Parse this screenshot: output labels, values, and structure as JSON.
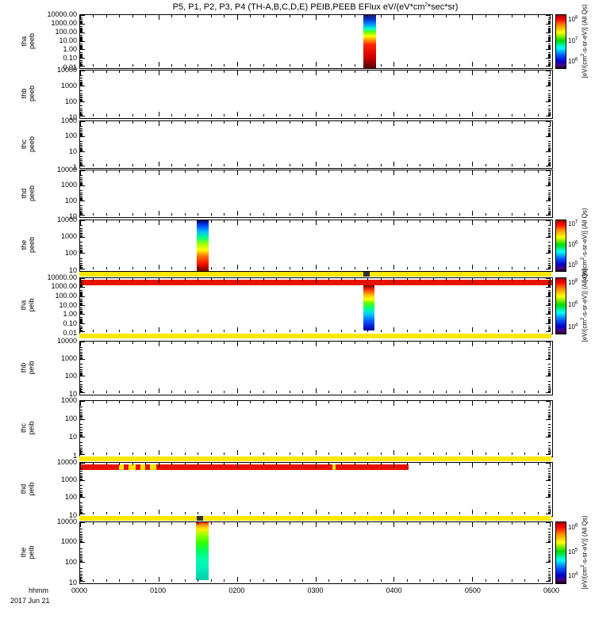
{
  "title": "P5, P1, P2, P3, P4 (TH-A,B,C,D,E) PEIB,PEEB EFlux eV/(eV*cm^2*sec*sr)",
  "chart_data": {
    "type": "heatmap",
    "title": "P5, P1, P2, P3, P4 (TH-A,B,C,D,E) PEIB,PEEB EFlux eV/(eV*cm^2*sec*sr)",
    "xlabel": "hhmm",
    "date": "2017 Jun 21",
    "x_ticks": [
      "0000",
      "0100",
      "0200",
      "0300",
      "0400",
      "0500",
      "0600"
    ],
    "x_range_hours": [
      0,
      6
    ],
    "grid": false,
    "colorbar_label": "[eV/(cm^2-s-sr-eV)] (All Qs)",
    "colorbar_gradient": [
      [
        0,
        "#9b0000"
      ],
      [
        0.08,
        "#ff0000"
      ],
      [
        0.2,
        "#ff9100"
      ],
      [
        0.33,
        "#ffff00"
      ],
      [
        0.48,
        "#00dd00"
      ],
      [
        0.62,
        "#00ffff"
      ],
      [
        0.76,
        "#0055ff"
      ],
      [
        0.87,
        "#0000cc"
      ],
      [
        0.95,
        "#4b0082"
      ],
      [
        1,
        "#140022"
      ]
    ],
    "panels": [
      {
        "name": "tha peeb",
        "label_lines": [
          "tha",
          "peeb"
        ],
        "yscale": "log",
        "yticks": [
          "10000.00",
          "1000.00",
          "100.00",
          "10.00",
          "1.00",
          "0.10",
          "0.01"
        ],
        "colorbar_ticks": [
          "10^8",
          "10^7",
          "10^6"
        ],
        "features": [
          {
            "type": "burst",
            "t0": "0336",
            "t1": "0345",
            "x0": 0.6,
            "x1": 0.627,
            "y0": 0,
            "y1": 1,
            "stops": [
              [
                0,
                "#202066"
              ],
              [
                0.08,
                "#0033cc"
              ],
              [
                0.18,
                "#0099ff"
              ],
              [
                0.26,
                "#00ffcc"
              ],
              [
                0.32,
                "#66ff00"
              ],
              [
                0.4,
                "#ffff00"
              ],
              [
                0.48,
                "#ff8800"
              ],
              [
                0.56,
                "#ff2200"
              ],
              [
                0.8,
                "#cc0000"
              ],
              [
                1,
                "#5a0000"
              ]
            ]
          }
        ]
      },
      {
        "name": "thb peeb",
        "label_lines": [
          "thb",
          "peeb"
        ],
        "yscale": "log",
        "yticks": [
          "10000",
          "1000",
          "100",
          "10"
        ],
        "features": []
      },
      {
        "name": "thc peeb",
        "label_lines": [
          "thc",
          "peeb"
        ],
        "yscale": "log",
        "yticks": [
          "1000",
          "100",
          "10",
          "1"
        ],
        "features": []
      },
      {
        "name": "thd peeb",
        "label_lines": [
          "thd",
          "peeb"
        ],
        "yscale": "log",
        "yticks": [
          "10000",
          "1000",
          "100",
          "10"
        ],
        "features": []
      },
      {
        "name": "the peeb",
        "label_lines": [
          "the",
          "peeb"
        ],
        "yscale": "log",
        "yticks": [
          "10000",
          "1000",
          "100",
          "10"
        ],
        "colorbar_ticks": [
          "10^7",
          "10^6",
          "10^5"
        ],
        "features": [
          {
            "type": "burst",
            "t0": "0129",
            "t1": "0138",
            "x0": 0.247,
            "x1": 0.272,
            "y0": 0,
            "y1": 1,
            "stops": [
              [
                0,
                "#000066"
              ],
              [
                0.1,
                "#0044ff"
              ],
              [
                0.22,
                "#00bbff"
              ],
              [
                0.34,
                "#00ff88"
              ],
              [
                0.46,
                "#99ff00"
              ],
              [
                0.58,
                "#ffff00"
              ],
              [
                0.7,
                "#ff7700"
              ],
              [
                0.85,
                "#ff1100"
              ],
              [
                1,
                "#770000"
              ]
            ]
          }
        ]
      },
      {
        "name": "tha peib",
        "label_lines": [
          "tha",
          "peib"
        ],
        "yscale": "log",
        "yticks": [
          "10000.00",
          "1000.00",
          "100.00",
          "10.00",
          "1.00",
          "0.10",
          "0.01"
        ],
        "colorbar_ticks": [
          "10^8",
          "10^6",
          "10^4"
        ],
        "features": [
          {
            "type": "edge_band",
            "position": "above",
            "color": "#ffe800"
          },
          {
            "type": "edge_band",
            "position": "below",
            "color": "#ffe800"
          },
          {
            "type": "edge_mark",
            "position": "above",
            "x0": 0.602,
            "x1": 0.615,
            "color": "#333333"
          },
          {
            "type": "hband",
            "x0": 0,
            "x1": 1,
            "y0": 0.03,
            "y1": 0.13,
            "color": "#e81100"
          },
          {
            "type": "burst",
            "t0": "0336",
            "t1": "0344",
            "x0": 0.6,
            "x1": 0.623,
            "y0": 0.13,
            "y1": 0.95,
            "stops": [
              [
                0,
                "#7a0000"
              ],
              [
                0.1,
                "#ff3300"
              ],
              [
                0.2,
                "#ffaa00"
              ],
              [
                0.3,
                "#ffff00"
              ],
              [
                0.4,
                "#55ff00"
              ],
              [
                0.52,
                "#00ff99"
              ],
              [
                0.64,
                "#00ccff"
              ],
              [
                0.78,
                "#0066ff"
              ],
              [
                0.9,
                "#0022dd"
              ],
              [
                1,
                "#000099"
              ]
            ]
          }
        ]
      },
      {
        "name": "thb peib",
        "label_lines": [
          "thb",
          "peib"
        ],
        "yscale": "log",
        "yticks": [
          "10000",
          "1000",
          "100",
          "10"
        ],
        "features": []
      },
      {
        "name": "thc peib",
        "label_lines": [
          "thc",
          "peib"
        ],
        "yscale": "log",
        "yticks": [
          "1000",
          "100",
          "10",
          "1"
        ],
        "features": []
      },
      {
        "name": "thd peib",
        "label_lines": [
          "thd",
          "peib"
        ],
        "yscale": "log",
        "yticks": [
          "10000",
          "1000",
          "100",
          "10"
        ],
        "features": [
          {
            "type": "edge_band",
            "position": "above",
            "color": "#ffe800"
          },
          {
            "type": "hband",
            "x0": 0,
            "x1": 0.695,
            "y0": 0.03,
            "y1": 0.13,
            "color": "#e81100"
          },
          {
            "type": "hband",
            "x0": 0.082,
            "x1": 0.092,
            "y0": 0.03,
            "y1": 0.13,
            "color": "#ffe800"
          },
          {
            "type": "hband",
            "x0": 0.103,
            "x1": 0.117,
            "y0": 0.03,
            "y1": 0.13,
            "color": "#ffe800"
          },
          {
            "type": "hband",
            "x0": 0.128,
            "x1": 0.138,
            "y0": 0.03,
            "y1": 0.13,
            "color": "#ffe800"
          },
          {
            "type": "hband",
            "x0": 0.148,
            "x1": 0.162,
            "y0": 0.03,
            "y1": 0.13,
            "color": "#ffe800"
          },
          {
            "type": "hband",
            "x0": 0.535,
            "x1": 0.541,
            "y0": 0.03,
            "y1": 0.13,
            "color": "#ffe800"
          }
        ]
      },
      {
        "name": "the peib",
        "label_lines": [
          "the",
          "peib"
        ],
        "yscale": "log",
        "yticks": [
          "10000",
          "1000",
          "100",
          "10"
        ],
        "colorbar_ticks": [
          "10^6",
          "10^5",
          "10^4"
        ],
        "features": [
          {
            "type": "edge_band",
            "position": "above",
            "color": "#ffe800"
          },
          {
            "type": "edge_mark",
            "position": "above",
            "x0": 0.248,
            "x1": 0.262,
            "color": "#333333"
          },
          {
            "type": "burst",
            "t0": "0128",
            "t1": "0139",
            "x0": 0.245,
            "x1": 0.273,
            "y0": 0,
            "y1": 0.95,
            "stops": [
              [
                0,
                "#ff2200"
              ],
              [
                0.05,
                "#ff9900"
              ],
              [
                0.12,
                "#ffee00"
              ],
              [
                0.22,
                "#99ff00"
              ],
              [
                0.35,
                "#33ff00"
              ],
              [
                0.5,
                "#00ff66"
              ],
              [
                0.65,
                "#00ffaa"
              ],
              [
                0.8,
                "#00eebb"
              ],
              [
                1,
                "#00ccaa"
              ]
            ]
          }
        ]
      }
    ]
  }
}
